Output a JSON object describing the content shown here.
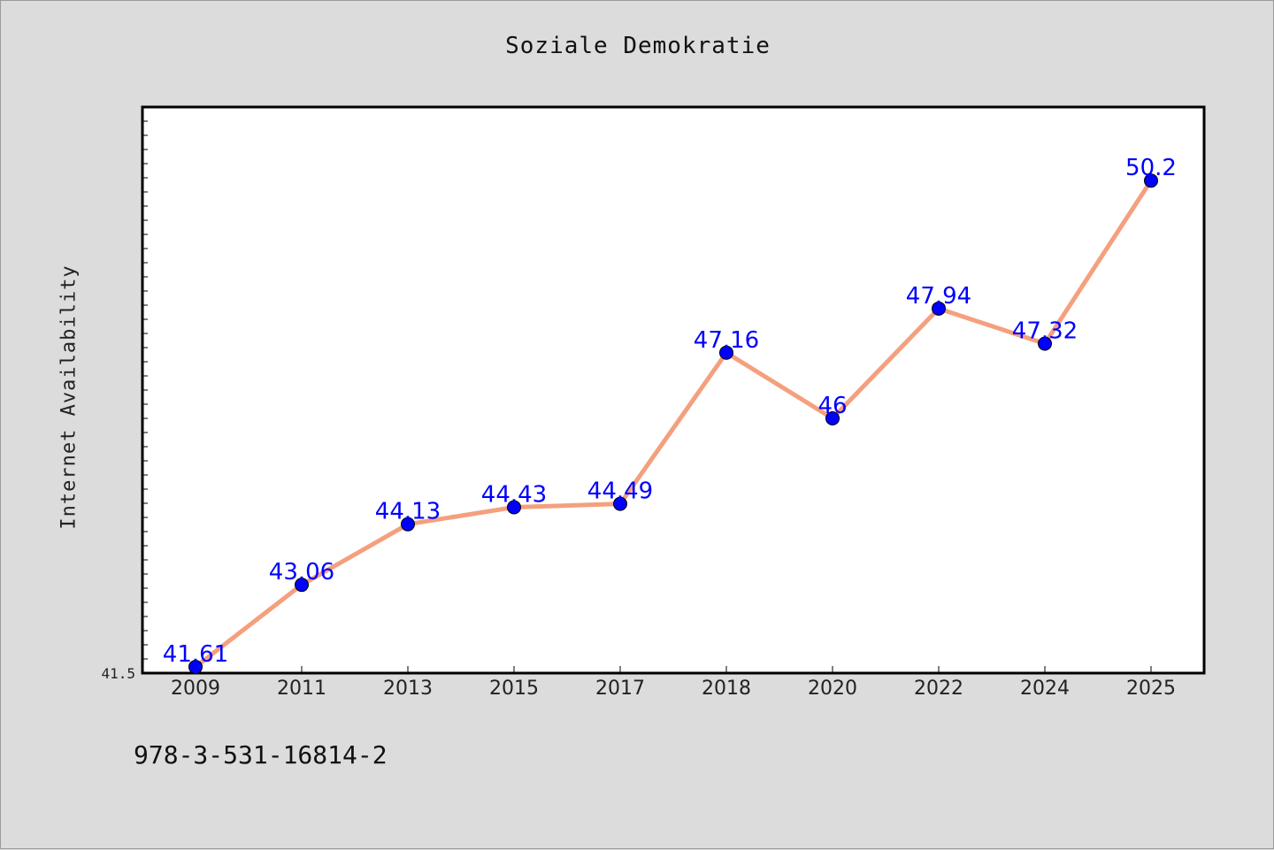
{
  "chart_data": {
    "type": "line",
    "title": "Soziale Demokratie",
    "xlabel": "",
    "ylabel": "Internet Availability",
    "categories": [
      "2009",
      "2011",
      "2013",
      "2015",
      "2017",
      "2018",
      "2020",
      "2022",
      "2024",
      "2025"
    ],
    "series": [
      {
        "values": [
          41.61,
          43.06,
          44.13,
          44.43,
          44.49,
          47.16,
          46,
          47.94,
          47.32,
          50.2
        ],
        "labels": [
          "41.61",
          "43.06",
          "44.13",
          "44.43",
          "44.49",
          "47.16",
          "46",
          "47.94",
          "47.32",
          "50.2"
        ]
      }
    ],
    "ylim": [
      41.5,
      51.5
    ],
    "y_tick_labels": [
      "41.5"
    ],
    "grid": false,
    "legend": "none",
    "colors": {
      "line": "#f4a07e",
      "marker": "#0000ff",
      "label": "#0000ff",
      "background": "#dcdcdc",
      "plot_background": "#ffffff"
    }
  },
  "footer": {
    "code": "978-3-531-16814-2"
  }
}
